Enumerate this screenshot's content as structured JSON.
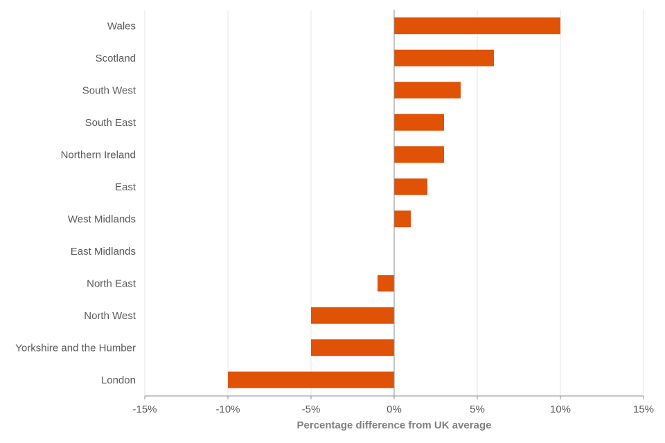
{
  "chart_data": {
    "type": "bar",
    "orientation": "horizontal",
    "title": "",
    "xlabel": "Percentage difference from UK average",
    "ylabel": "",
    "categories": [
      "Wales",
      "Scotland",
      "South West",
      "South East",
      "Northern Ireland",
      "East",
      "West Midlands",
      "East Midlands",
      "North East",
      "North West",
      "Yorkshire and the Humber",
      "London"
    ],
    "values": [
      10,
      6,
      4,
      3,
      3,
      2,
      1,
      0,
      -1,
      -5,
      -5,
      -10
    ],
    "value_unit": "%",
    "xlim": [
      -15,
      15
    ],
    "xticks": [
      -15,
      -10,
      -5,
      0,
      5,
      10,
      15
    ],
    "xtick_labels": [
      "-15%",
      "-10%",
      "-5%",
      "0%",
      "5%",
      "10%",
      "15%"
    ],
    "grid": "vertical",
    "legend": "none",
    "bar_color": "#E05206",
    "grid_color": "#E6E6E6",
    "axis_color": "#8C8C8C"
  }
}
